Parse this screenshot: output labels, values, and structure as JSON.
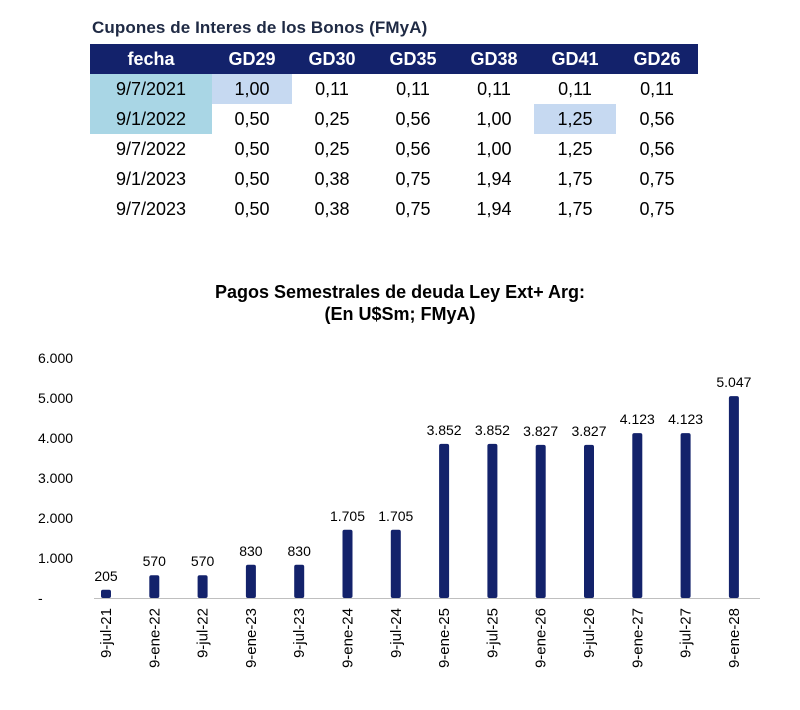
{
  "table": {
    "title": "Cupones de Interes de los Bonos (FMyA)",
    "headers": [
      "fecha",
      "GD29",
      "GD30",
      "GD35",
      "GD38",
      "GD41",
      "GD26"
    ],
    "rows": [
      [
        "9/7/2021",
        "1,00",
        "0,11",
        "0,11",
        "0,11",
        "0,11",
        "0,11"
      ],
      [
        "9/1/2022",
        "0,50",
        "0,25",
        "0,56",
        "1,00",
        "1,25",
        "0,56"
      ],
      [
        "9/7/2022",
        "0,50",
        "0,25",
        "0,56",
        "1,00",
        "1,25",
        "0,56"
      ],
      [
        "9/1/2023",
        "0,50",
        "0,38",
        "0,75",
        "1,94",
        "1,75",
        "0,75"
      ],
      [
        "9/7/2023",
        "0,50",
        "0,38",
        "0,75",
        "1,94",
        "1,75",
        "0,75"
      ]
    ],
    "colors": {
      "header_bg": "#13226b",
      "header_text": "#ffffff",
      "highlight_date": "#a9d6e5",
      "highlight_cell": "#c6d9f1"
    }
  },
  "chart_data": {
    "type": "bar",
    "title": "Pagos Semestrales de deuda Ley Ext+ Arg:",
    "subtitle": "(En U$Sm; FMyA)",
    "categories": [
      "9-jul-21",
      "9-ene-22",
      "9-jul-22",
      "9-ene-23",
      "9-jul-23",
      "9-ene-24",
      "9-jul-24",
      "9-ene-25",
      "9-jul-25",
      "9-ene-26",
      "9-jul-26",
      "9-ene-27",
      "9-jul-27",
      "9-ene-28"
    ],
    "values": [
      205,
      570,
      570,
      830,
      830,
      1705,
      1705,
      3852,
      3852,
      3827,
      3827,
      4123,
      4123,
      5047
    ],
    "value_labels": [
      "205",
      "570",
      "570",
      "830",
      "830",
      "1.705",
      "1.705",
      "3.852",
      "3.852",
      "3.827",
      "3.827",
      "4.123",
      "4.123",
      "5.047"
    ],
    "y_ticks": [
      0,
      1000,
      2000,
      3000,
      4000,
      5000,
      6000
    ],
    "y_tick_labels": [
      "-",
      "1.000",
      "2.000",
      "3.000",
      "4.000",
      "5.000",
      "6.000"
    ],
    "ylim": [
      0,
      6000
    ],
    "xlabel": "",
    "ylabel": "",
    "grid": false,
    "bar_color": "#13226b"
  }
}
